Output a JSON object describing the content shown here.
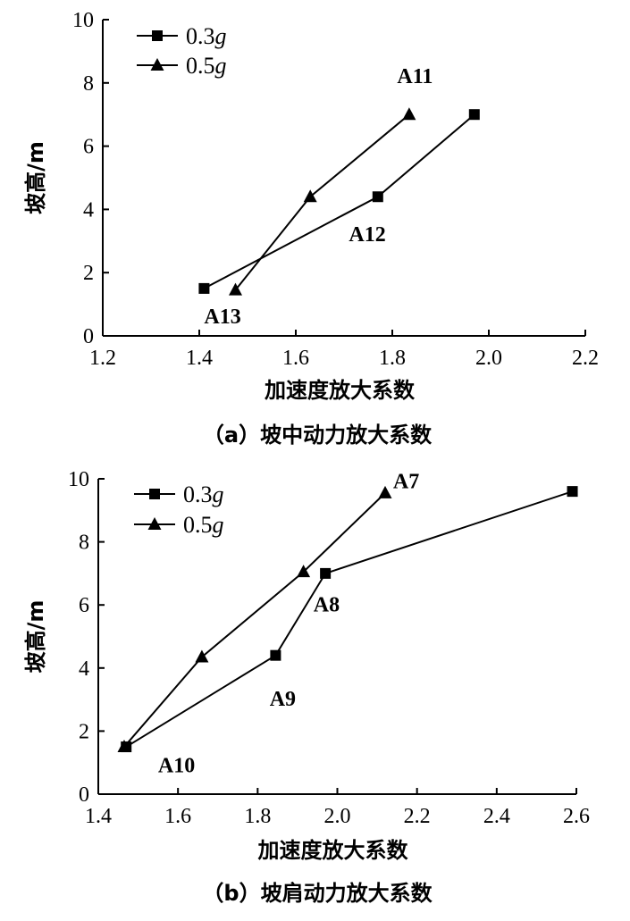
{
  "chart_data": [
    {
      "type": "line",
      "caption": "（a）坡中动力放大系数",
      "xlabel": "加速度放大系数",
      "ylabel": "坡高/m",
      "xlim": [
        1.2,
        2.2
      ],
      "ylim": [
        0,
        10
      ],
      "xticks": [
        "1.2",
        "1.4",
        "1.6",
        "1.8",
        "2.0",
        "2.2"
      ],
      "yticks": [
        "0",
        "2",
        "4",
        "6",
        "8",
        "10"
      ],
      "legend": "top-left",
      "series": [
        {
          "name": "0.3",
          "name_suffix": "g",
          "marker": "square",
          "x": [
            1.41,
            1.77,
            1.97
          ],
          "y": [
            1.5,
            4.4,
            7.0
          ]
        },
        {
          "name": "0.5",
          "name_suffix": "g",
          "marker": "triangle",
          "x": [
            1.475,
            1.63,
            1.835
          ],
          "y": [
            1.45,
            4.4,
            7.0
          ]
        }
      ],
      "annotations": [
        {
          "text": "A11",
          "x": 1.81,
          "y": 8.0
        },
        {
          "text": "A12",
          "x": 1.71,
          "y": 3.0
        },
        {
          "text": "A13",
          "x": 1.41,
          "y": 0.4
        }
      ]
    },
    {
      "type": "line",
      "caption": "（b）坡肩动力放大系数",
      "xlabel": "加速度放大系数",
      "ylabel": "坡高/m",
      "xlim": [
        1.4,
        2.6
      ],
      "ylim": [
        0,
        10
      ],
      "xticks": [
        "1.4",
        "1.6",
        "1.8",
        "2.0",
        "2.2",
        "2.4",
        "2.6"
      ],
      "yticks": [
        "0",
        "2",
        "4",
        "6",
        "8",
        "10"
      ],
      "legend": "top-left",
      "series": [
        {
          "name": "0.3",
          "name_suffix": "g",
          "marker": "square",
          "x": [
            1.47,
            1.845,
            1.97,
            2.59
          ],
          "y": [
            1.5,
            4.4,
            7.0,
            9.6
          ]
        },
        {
          "name": "0.5",
          "name_suffix": "g",
          "marker": "triangle",
          "x": [
            1.465,
            1.66,
            1.915,
            2.12
          ],
          "y": [
            1.5,
            4.35,
            7.05,
            9.55
          ]
        }
      ],
      "annotations": [
        {
          "text": "A7",
          "x": 2.14,
          "y": 9.7
        },
        {
          "text": "A8",
          "x": 1.94,
          "y": 5.8
        },
        {
          "text": "A9",
          "x": 1.83,
          "y": 2.8
        },
        {
          "text": "A10",
          "x": 1.55,
          "y": 0.7
        }
      ]
    }
  ]
}
